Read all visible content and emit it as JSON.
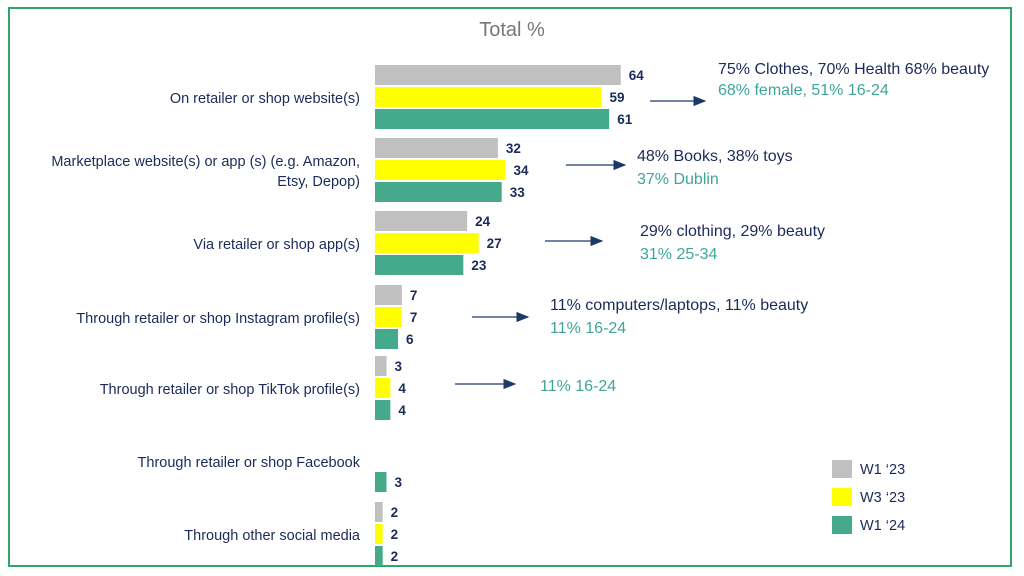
{
  "chart_data": {
    "type": "bar",
    "orientation": "horizontal",
    "title": "Total %",
    "xlim": [
      0,
      70
    ],
    "grid": false,
    "legend_position": "bottom-right",
    "categories": [
      [
        "On retailer or shop website(s)"
      ],
      [
        "Marketplace website(s) or app (s) (e.g. Amazon,",
        "Etsy, Depop)"
      ],
      [
        "Via retailer or shop app(s)"
      ],
      [
        "Through retailer or shop Instagram profile(s)"
      ],
      [
        "Through retailer or shop  TikTok profile(s)"
      ],
      [
        "Through retailer or shop Facebook"
      ],
      [
        "Through other social media"
      ]
    ],
    "series": [
      {
        "name": "W1 ‘23",
        "color": "#c0c0c0",
        "values": [
          64,
          32,
          24,
          7,
          3,
          null,
          2
        ]
      },
      {
        "name": "W3 ‘23",
        "color": "#ffff00",
        "values": [
          59,
          34,
          27,
          7,
          4,
          null,
          2
        ]
      },
      {
        "name": "W1 ‘24",
        "color": "#45a98c",
        "values": [
          61,
          33,
          23,
          6,
          4,
          3,
          2
        ]
      }
    ],
    "annotations": [
      {
        "category_index": 0,
        "main": "75% Clothes, 70% Health 68% beauty",
        "sub": "68% female, 51% 16-24"
      },
      {
        "category_index": 1,
        "main": "48% Books, 38% toys",
        "sub": "37% Dublin"
      },
      {
        "category_index": 2,
        "main": "29% clothing, 29% beauty",
        "sub": "31% 25-34"
      },
      {
        "category_index": 3,
        "main": "11% computers/laptops, 11% beauty",
        "sub": "11% 16-24"
      },
      {
        "category_index": 4,
        "main": "",
        "sub": "11% 16-24"
      }
    ]
  },
  "colors": {
    "frame_border": "#2aa86a",
    "label_text": "#1c2a5a",
    "annotation_sub": "#3fa59a",
    "title_text": "#777777"
  }
}
